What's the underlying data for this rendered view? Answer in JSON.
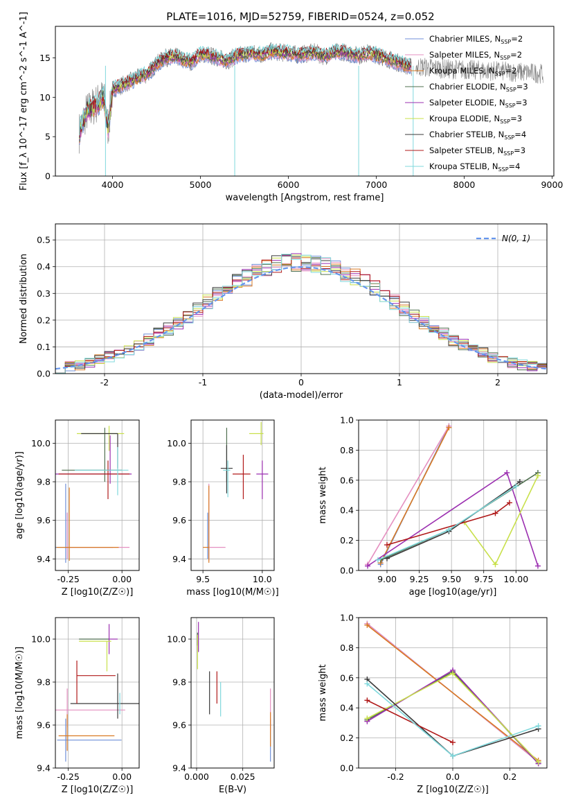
{
  "figure_title": "PLATE=1016, MJD=52759, FIBERID=0524, z=0.052",
  "models": [
    {
      "name": "Chabrier MILES",
      "nssp": "2",
      "color": "#6f8fd8"
    },
    {
      "name": "Salpeter MILES",
      "nssp": "2",
      "color": "#e58fc0"
    },
    {
      "name": "Kroupa MILES",
      "nssp": "2",
      "color": "#d97a23"
    },
    {
      "name": "Chabrier ELODIE",
      "nssp": "3",
      "color": "#4f6f4f"
    },
    {
      "name": "Salpeter ELODIE",
      "nssp": "3",
      "color": "#9b2fb0"
    },
    {
      "name": "Kroupa ELODIE",
      "nssp": "3",
      "color": "#c8e04a"
    },
    {
      "name": "Chabrier STELIB",
      "nssp": "4",
      "color": "#3a3a3a"
    },
    {
      "name": "Salpeter STELIB",
      "nssp": "3",
      "color": "#b01818"
    },
    {
      "name": "Kroupa STELIB",
      "nssp": "4",
      "color": "#7fd8dc"
    }
  ],
  "chart_data": [
    {
      "id": "spectrum",
      "type": "line",
      "xlabel": "wavelength [Angstrom, rest frame]",
      "ylabel": "Flux [f_λ 10^-17 erg cm^-2 s^-1 A^-1]",
      "xlim": [
        3350,
        9020
      ],
      "ylim": [
        0,
        19
      ],
      "xticks": [
        4000,
        5000,
        6000,
        7000,
        8000,
        9000
      ],
      "yticks": [
        0,
        5,
        10,
        15
      ],
      "data_color": "#808080",
      "spectrum_x": [
        3620,
        3700,
        3800,
        3900,
        3950,
        4000,
        4100,
        4200,
        4300,
        4400,
        4500,
        4600,
        4700,
        4800,
        4900,
        5000,
        5100,
        5200,
        5300,
        5400,
        5500,
        5600,
        5700,
        5800,
        5900,
        6000,
        6100,
        6200,
        6300,
        6400,
        6500,
        6600,
        6700,
        6800,
        6900,
        7000,
        7100,
        7200,
        7300,
        7400
      ],
      "spectrum_y": [
        5.5,
        8.0,
        9.0,
        10.0,
        6.0,
        11.0,
        11.5,
        12.0,
        12.5,
        13.0,
        14.2,
        15.0,
        15.2,
        14.8,
        14.5,
        15.5,
        15.3,
        15.0,
        14.6,
        15.2,
        15.5,
        15.6,
        15.4,
        15.8,
        15.7,
        15.6,
        15.4,
        15.5,
        15.7,
        15.2,
        15.6,
        15.8,
        15.5,
        15.3,
        15.6,
        15.4,
        15.0,
        14.6,
        14.2,
        13.8
      ],
      "tail_x": [
        7450,
        7800,
        8200,
        8600,
        8900
      ],
      "tail_y": [
        13.9,
        13.6,
        13.4,
        13.2,
        13.0
      ]
    },
    {
      "id": "residuals",
      "type": "histogram",
      "xlabel": "(data-model)/error",
      "ylabel": "Normed distribution",
      "xlim": [
        -2.5,
        2.5
      ],
      "ylim": [
        0,
        0.56
      ],
      "xticks": [
        -2,
        -1,
        0,
        1,
        2
      ],
      "yticks": [
        0.0,
        0.1,
        0.2,
        0.3,
        0.4,
        0.5
      ],
      "bin_width": 0.1,
      "bin_centers": [
        -2.45,
        -2.35,
        -2.25,
        -2.15,
        -2.05,
        -1.95,
        -1.85,
        -1.75,
        -1.65,
        -1.55,
        -1.45,
        -1.35,
        -1.25,
        -1.15,
        -1.05,
        -0.95,
        -0.85,
        -0.75,
        -0.65,
        -0.55,
        -0.45,
        -0.35,
        -0.25,
        -0.15,
        -0.05,
        0.05,
        0.15,
        0.25,
        0.35,
        0.45,
        0.55,
        0.65,
        0.75,
        0.85,
        0.95,
        1.05,
        1.15,
        1.25,
        1.35,
        1.45,
        1.55,
        1.65,
        1.75,
        1.85,
        1.95,
        2.05,
        2.15,
        2.25,
        2.35,
        2.45
      ],
      "normal_curve_label": "N(0, 1)",
      "normal_curve_color": "#6495ed"
    },
    {
      "id": "age_vs_z",
      "type": "errorbar",
      "xlabel": "Z [log10(Z/Z☉)]",
      "ylabel": "age [log10(age/yr)]",
      "xlim": [
        -0.31,
        0.08
      ],
      "ylim": [
        9.34,
        10.12
      ],
      "xticks": [
        -0.25,
        0.0
      ],
      "yticks": [
        9.4,
        9.6,
        9.8,
        10.0
      ],
      "points": [
        {
          "x": -0.262,
          "y": 9.46,
          "xerr": [
            0.07,
            0.22
          ],
          "yerr": [
            0.08,
            0.33
          ]
        },
        {
          "x": -0.255,
          "y": 9.46,
          "xerr": [
            0.0,
            0.29
          ],
          "yerr": [
            0.06,
            0.18
          ]
        },
        {
          "x": -0.245,
          "y": 9.46,
          "xerr": [
            0.06,
            0.23
          ],
          "yerr": [
            0.07,
            0.31
          ]
        },
        {
          "x": -0.08,
          "y": 9.86,
          "xerr": [
            0.2,
            0.08
          ],
          "yerr": [
            0.06,
            0.22
          ]
        },
        {
          "x": -0.055,
          "y": 9.84,
          "xerr": [
            0.3,
            0.1
          ],
          "yerr": [
            0.05,
            0.2
          ]
        },
        {
          "x": -0.06,
          "y": 10.05,
          "xerr": [
            0.15,
            0.07
          ],
          "yerr": [
            0.09,
            0.04
          ]
        },
        {
          "x": -0.02,
          "y": 10.05,
          "xerr": [
            0.17,
            0.0
          ],
          "yerr": [
            0.18,
            0.0
          ]
        },
        {
          "x": -0.065,
          "y": 9.84,
          "xerr": [
            0.23,
            0.1
          ],
          "yerr": [
            0.13,
            0.07
          ]
        },
        {
          "x": -0.02,
          "y": 9.86,
          "xerr": [
            0.2,
            0.05
          ],
          "yerr": [
            0.13,
            0.12
          ]
        }
      ]
    },
    {
      "id": "age_vs_mass",
      "type": "errorbar",
      "xlabel": "mass [log10(M/M☉)]",
      "ylabel": "",
      "xlim": [
        9.4,
        10.1
      ],
      "ylim": [
        9.34,
        10.12
      ],
      "xticks": [
        9.5,
        10.0
      ],
      "yticks": [
        9.4,
        9.6,
        9.8,
        10.0
      ],
      "points": [
        {
          "x": 9.54,
          "y": 9.46,
          "xerr": [
            0.0,
            0.0
          ],
          "yerr": [
            0.06,
            0.18
          ]
        },
        {
          "x": 9.55,
          "y": 9.46,
          "xerr": [
            0.0,
            0.14
          ],
          "yerr": [
            0.07,
            0.33
          ]
        },
        {
          "x": 9.55,
          "y": 9.46,
          "xerr": [
            0.05,
            0.0
          ],
          "yerr": [
            0.08,
            0.32
          ]
        },
        {
          "x": 9.7,
          "y": 9.86,
          "xerr": [
            0.0,
            0.0
          ],
          "yerr": [
            0.06,
            0.22
          ]
        },
        {
          "x": 10.0,
          "y": 9.84,
          "xerr": [
            0.05,
            0.05
          ],
          "yerr": [
            0.13,
            0.07
          ]
        },
        {
          "x": 9.99,
          "y": 10.05,
          "xerr": [
            0.1,
            0.02
          ],
          "yerr": [
            0.06,
            0.06
          ]
        },
        {
          "x": 9.7,
          "y": 9.87,
          "xerr": [
            0.05,
            0.05
          ],
          "yerr": [
            0.13,
            0.12
          ]
        },
        {
          "x": 9.84,
          "y": 9.84,
          "xerr": [
            0.09,
            0.06
          ],
          "yerr": [
            0.13,
            0.1
          ]
        },
        {
          "x": 9.71,
          "y": 9.86,
          "xerr": [
            0.04,
            0.02
          ],
          "yerr": [
            0.14,
            0.05
          ]
        }
      ]
    },
    {
      "id": "weight_vs_age",
      "type": "line",
      "xlabel": "age [log10(age/yr)]",
      "ylabel": "mass weight",
      "xlim": [
        8.78,
        10.24
      ],
      "ylim": [
        0.0,
        1.0
      ],
      "xticks": [
        9.0,
        9.25,
        9.5,
        9.75,
        10.0
      ],
      "yticks": [
        0.0,
        0.2,
        0.4,
        0.6,
        0.8,
        1.0
      ],
      "series": [
        {
          "model": 0,
          "x": [
            8.95,
            9.48
          ],
          "y": [
            0.04,
            0.96
          ]
        },
        {
          "model": 1,
          "x": [
            8.85,
            9.48
          ],
          "y": [
            0.04,
            0.96
          ]
        },
        {
          "model": 2,
          "x": [
            8.95,
            9.48
          ],
          "y": [
            0.05,
            0.95
          ]
        },
        {
          "model": 3,
          "x": [
            8.95,
            9.48,
            10.17
          ],
          "y": [
            0.07,
            0.27,
            0.65
          ]
        },
        {
          "model": 4,
          "x": [
            8.85,
            9.93,
            10.17
          ],
          "y": [
            0.03,
            0.65,
            0.03
          ]
        },
        {
          "model": 5,
          "x": [
            9.6,
            9.84,
            10.17
          ],
          "y": [
            0.32,
            0.04,
            0.63
          ]
        },
        {
          "model": 6,
          "x": [
            9.0,
            9.48,
            10.03
          ],
          "y": [
            0.08,
            0.26,
            0.59
          ]
        },
        {
          "model": 7,
          "x": [
            9.0,
            9.84,
            9.95
          ],
          "y": [
            0.17,
            0.38,
            0.45
          ]
        },
        {
          "model": 8,
          "x": [
            8.93,
            9.48,
            10.0
          ],
          "y": [
            0.07,
            0.27,
            0.56
          ]
        }
      ]
    },
    {
      "id": "mass_vs_z",
      "type": "errorbar",
      "xlabel": "Z [log10(Z/Z☉)]",
      "ylabel": "mass [log10(M/M☉)]",
      "xlim": [
        -0.31,
        0.08
      ],
      "ylim": [
        9.4,
        10.1
      ],
      "xticks": [
        -0.25,
        0.0
      ],
      "yticks": [
        9.4,
        9.6,
        9.8,
        10.0
      ],
      "points": [
        {
          "x": -0.262,
          "y": 9.53,
          "xerr": [
            0.04,
            0.26
          ],
          "yerr": [
            0.1,
            0.1
          ]
        },
        {
          "x": -0.255,
          "y": 9.67,
          "xerr": [
            0.06,
            0.27
          ],
          "yerr": [
            0.08,
            0.1
          ]
        },
        {
          "x": -0.255,
          "y": 9.55,
          "xerr": [
            0.04,
            0.22
          ],
          "yerr": [
            0.07,
            0.1
          ]
        },
        {
          "x": -0.2,
          "y": 10.0,
          "xerr": [
            0.0,
            0.14
          ],
          "yerr": [
            0.0,
            0.0
          ]
        },
        {
          "x": -0.06,
          "y": 10.0,
          "xerr": [
            0.0,
            0.04
          ],
          "yerr": [
            0.07,
            0.07
          ]
        },
        {
          "x": -0.07,
          "y": 9.99,
          "xerr": [
            0.13,
            0.02
          ],
          "yerr": [
            0.14,
            0.0
          ]
        },
        {
          "x": -0.02,
          "y": 9.7,
          "xerr": [
            0.22,
            0.1
          ],
          "yerr": [
            0.07,
            0.14
          ]
        },
        {
          "x": -0.21,
          "y": 9.83,
          "xerr": [
            0.0,
            0.18
          ],
          "yerr": [
            0.13,
            0.07
          ]
        },
        {
          "x": -0.01,
          "y": 9.7,
          "xerr": [
            0.0,
            0.0
          ],
          "yerr": [
            0.05,
            0.05
          ]
        }
      ]
    },
    {
      "id": "mass_vs_ebv",
      "type": "errorbar",
      "xlabel": "E(B-V)",
      "ylabel": "",
      "xlim": [
        -0.003,
        0.042
      ],
      "ylim": [
        9.4,
        10.1
      ],
      "xticks": [
        0.0,
        0.025
      ],
      "tick_labels": [
        "0.000",
        "0.025"
      ],
      "yticks": [
        9.4,
        9.6,
        9.8,
        10.0
      ],
      "points": [
        {
          "x": 0.04,
          "y": 9.53,
          "xerr": [
            0,
            0
          ],
          "yerr": [
            0.1,
            0.1
          ]
        },
        {
          "x": 0.04,
          "y": 9.67,
          "xerr": [
            0,
            0
          ],
          "yerr": [
            0.1,
            0.1
          ]
        },
        {
          "x": 0.04,
          "y": 9.58,
          "xerr": [
            0,
            0
          ],
          "yerr": [
            0.08,
            0.08
          ]
        },
        {
          "x": 0.0005,
          "y": 10.0,
          "xerr": [
            0,
            0
          ],
          "yerr": [
            0.03,
            0.03
          ]
        },
        {
          "x": 0.001,
          "y": 10.01,
          "xerr": [
            0,
            0
          ],
          "yerr": [
            0.07,
            0.07
          ]
        },
        {
          "x": 0.0005,
          "y": 9.94,
          "xerr": [
            0,
            0
          ],
          "yerr": [
            0.08,
            0.08
          ]
        },
        {
          "x": 0.007,
          "y": 9.75,
          "xerr": [
            0,
            0
          ],
          "yerr": [
            0.1,
            0.1
          ]
        },
        {
          "x": 0.011,
          "y": 9.78,
          "xerr": [
            0,
            0
          ],
          "yerr": [
            0.08,
            0.07
          ]
        },
        {
          "x": 0.013,
          "y": 9.72,
          "xerr": [
            0,
            0
          ],
          "yerr": [
            0.08,
            0.08
          ]
        }
      ]
    },
    {
      "id": "weight_vs_z",
      "type": "line",
      "xlabel": "Z [log10(Z/Z☉)]",
      "ylabel": "mass weight",
      "xlim": [
        -0.33,
        0.33
      ],
      "ylim": [
        0.0,
        1.0
      ],
      "xticks": [
        -0.2,
        0.0,
        0.2
      ],
      "yticks": [
        0.0,
        0.2,
        0.4,
        0.6,
        0.8,
        1.0
      ],
      "series": [
        {
          "model": 0,
          "x": [
            -0.3,
            0.3
          ],
          "y": [
            0.96,
            0.04
          ]
        },
        {
          "model": 1,
          "x": [
            -0.3,
            0.3
          ],
          "y": [
            0.96,
            0.04
          ]
        },
        {
          "model": 2,
          "x": [
            -0.3,
            0.3
          ],
          "y": [
            0.95,
            0.05
          ]
        },
        {
          "model": 3,
          "x": [
            -0.3,
            0.0,
            0.3
          ],
          "y": [
            0.32,
            0.64,
            0.03
          ]
        },
        {
          "model": 4,
          "x": [
            -0.3,
            0.0,
            0.3
          ],
          "y": [
            0.31,
            0.65,
            0.03
          ]
        },
        {
          "model": 5,
          "x": [
            -0.3,
            0.0,
            0.3
          ],
          "y": [
            0.33,
            0.63,
            0.04
          ]
        },
        {
          "model": 6,
          "x": [
            -0.3,
            0.0,
            0.3
          ],
          "y": [
            0.59,
            0.08,
            0.26
          ]
        },
        {
          "model": 7,
          "x": [
            -0.3,
            0.0
          ],
          "y": [
            0.45,
            0.17
          ]
        },
        {
          "model": 8,
          "x": [
            -0.3,
            0.0,
            0.3
          ],
          "y": [
            0.56,
            0.08,
            0.28
          ]
        }
      ]
    }
  ]
}
